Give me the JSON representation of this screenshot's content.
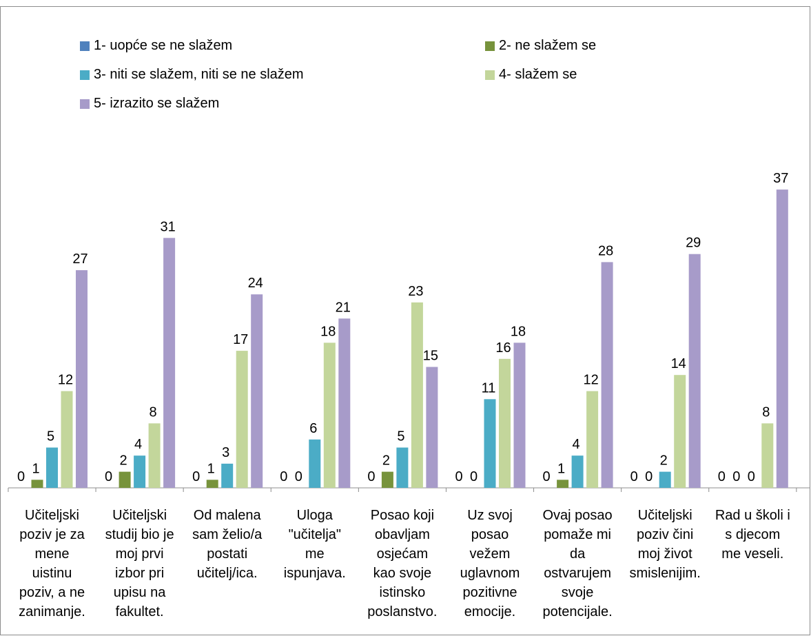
{
  "chart_data": {
    "type": "bar",
    "title": "",
    "xlabel": "",
    "ylabel": "",
    "ylim": [
      0,
      40
    ],
    "legend_position": "top",
    "categories": [
      "Učiteljski poziv je za mene uistinu poziv, a ne zanimanje.",
      "Učiteljski studij bio je moj prvi izbor pri upisu na fakultet.",
      "Od malena sam želio/a postati učitelj/ica.",
      "Uloga \"učitelja\" me ispunjava.",
      "Posao koji obavljam osjećam kao svoje istinsko poslanstvo.",
      "Uz svoj posao vežem uglavnom pozitivne emocije.",
      "Ovaj posao pomaže mi da ostvarujem svoje potencijale.",
      "Učiteljski poziv čini moj život smislenijim.",
      "Rad u školi i s djecom me veseli."
    ],
    "category_lines": [
      [
        "Učiteljski",
        "poziv je za",
        "mene",
        "uistinu",
        "poziv, a ne",
        "zanimanje."
      ],
      [
        "Učiteljski",
        "studij bio je",
        "moj prvi",
        "izbor pri",
        "upisu na",
        "fakultet."
      ],
      [
        "Od malena",
        "sam želio/a",
        "postati",
        "učitelj/ica."
      ],
      [
        "Uloga",
        "\"učitelja\"",
        "me",
        "ispunjava."
      ],
      [
        "Posao koji",
        "obavljam",
        "osjećam",
        "kao svoje",
        "istinsko",
        "poslanstvo."
      ],
      [
        "Uz svoj",
        "posao",
        "vežem",
        "uglavnom",
        "pozitivne",
        "emocije."
      ],
      [
        "Ovaj posao",
        "pomaže mi",
        "da",
        "ostvarujem",
        "svoje",
        "potencijale."
      ],
      [
        "Učiteljski",
        "poziv čini",
        "moj život",
        "smislenijim."
      ],
      [
        "Rad u školi i",
        "s djecom",
        "me veseli."
      ]
    ],
    "series": [
      {
        "name": "1- uopće se ne slažem",
        "color": "#4f81bd",
        "values": [
          0,
          0,
          0,
          0,
          0,
          0,
          0,
          0,
          0
        ]
      },
      {
        "name": "2- ne slažem se",
        "color": "#77933c",
        "values": [
          1,
          2,
          1,
          0,
          2,
          0,
          1,
          0,
          0
        ]
      },
      {
        "name": "3- niti se slažem, niti se ne slažem",
        "color": "#4bacc6",
        "values": [
          5,
          4,
          3,
          6,
          5,
          11,
          4,
          2,
          0
        ]
      },
      {
        "name": "4- slažem se",
        "color": "#c3d69b",
        "values": [
          12,
          8,
          17,
          18,
          23,
          16,
          12,
          14,
          8
        ]
      },
      {
        "name": "5- izrazito se slažem",
        "color": "#a79bc9",
        "values": [
          27,
          31,
          24,
          21,
          15,
          18,
          28,
          29,
          37
        ]
      }
    ]
  }
}
